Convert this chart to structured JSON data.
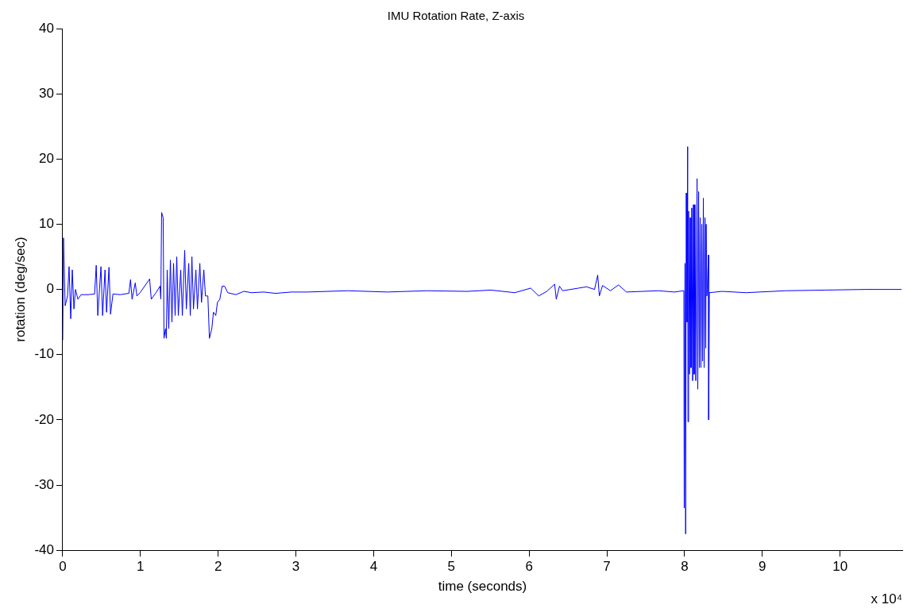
{
  "chart_data": {
    "type": "line",
    "title": "IMU Rotation Rate, Z-axis",
    "xlabel": "time (seconds)",
    "ylabel": "rotation (deg/sec)",
    "annotations": [
      "x 10⁴"
    ],
    "xlim": [
      0,
      10.8
    ],
    "ylim": [
      -40,
      40
    ],
    "xticks": [
      0,
      1,
      2,
      3,
      4,
      5,
      6,
      7,
      8,
      9,
      10
    ],
    "yticks": [
      -40,
      -30,
      -20,
      -10,
      0,
      10,
      20,
      30,
      40
    ],
    "grid": false,
    "legend": false,
    "marker": "none",
    "line_style": "solid",
    "series": [
      {
        "color": "#0000ff",
        "x": [
          0,
          0.01,
          0.031,
          0.062,
          0.082,
          0.103,
          0.123,
          0.144,
          0.164,
          0.195,
          0.236,
          0.328,
          0.41,
          0.431,
          0.451,
          0.492,
          0.513,
          0.544,
          0.564,
          0.595,
          0.615,
          0.646,
          0.739,
          0.851,
          0.872,
          0.892,
          0.933,
          0.954,
          0.995,
          1.118,
          1.139,
          1.2,
          1.251,
          1.262,
          1.272,
          1.292,
          1.303,
          1.323,
          1.333,
          1.344,
          1.364,
          1.385,
          1.405,
          1.426,
          1.446,
          1.467,
          1.487,
          1.518,
          1.539,
          1.569,
          1.59,
          1.621,
          1.641,
          1.662,
          1.682,
          1.713,
          1.733,
          1.764,
          1.785,
          1.815,
          1.836,
          1.867,
          1.887,
          1.918,
          1.939,
          1.969,
          1.99,
          2.021,
          2.051,
          2.082,
          2.123,
          2.226,
          2.328,
          2.431,
          2.585,
          2.739,
          2.944,
          3.149,
          3.662,
          4.174,
          4.687,
          5.2,
          5.508,
          5.815,
          6.021,
          6.123,
          6.226,
          6.328,
          6.349,
          6.39,
          6.431,
          6.636,
          6.739,
          6.841,
          6.882,
          6.903,
          6.944,
          7.046,
          7.149,
          7.251,
          7.456,
          7.662,
          7.867,
          7.99,
          7.995,
          8.005,
          8.013,
          8.021,
          8.031,
          8.039,
          8.043,
          8.051,
          8.062,
          8.072,
          8.082,
          8.092,
          8.103,
          8.113,
          8.123,
          8.133,
          8.144,
          8.16,
          8.169,
          8.18,
          8.19,
          8.2,
          8.21,
          8.221,
          8.231,
          8.241,
          8.251,
          8.262,
          8.272,
          8.277,
          8.287,
          8.307,
          8.31,
          8.318,
          8.482,
          8.79,
          9.303,
          9.815,
          10.328,
          10.79
        ],
        "values": [
          -7.8,
          7.9,
          -2.5,
          -1,
          3.5,
          -4.5,
          3,
          -3,
          0,
          -1.5,
          -0.8,
          -0.8,
          -0.7,
          3.7,
          -4,
          3.5,
          -4,
          3,
          -3.5,
          3.4,
          -3.8,
          -0.7,
          -0.8,
          -0.6,
          1.5,
          -1.5,
          1,
          -1,
          -0.5,
          1.6,
          -1.5,
          -0.5,
          0.5,
          -1.5,
          11.8,
          11,
          -7.5,
          -6,
          -7.5,
          3,
          -6,
          4.5,
          -5,
          4,
          -4,
          5,
          -4,
          3,
          -4,
          6,
          -3,
          4,
          -4,
          5,
          -3,
          3,
          -3,
          4,
          -2,
          3,
          -1,
          -1,
          -7.5,
          -6,
          -3.5,
          -4,
          -2,
          -1.5,
          0.5,
          0.5,
          -0.5,
          -0.8,
          -0.3,
          -0.5,
          -0.4,
          -0.6,
          -0.4,
          -0.4,
          -0.2,
          -0.4,
          -0.2,
          -0.3,
          -0.1,
          -0.5,
          0.2,
          -1,
          -0.3,
          0.8,
          -1.5,
          0.5,
          -0.2,
          0.2,
          0.4,
          0,
          2.2,
          -1,
          0.6,
          -0.2,
          0.7,
          -0.4,
          -0.3,
          -0.2,
          -0.4,
          -0.2,
          -33.5,
          4,
          -37.5,
          14.8,
          -5,
          21.9,
          -20.3,
          12,
          -13,
          11,
          -12,
          12.5,
          -14,
          13,
          -13,
          13,
          -14,
          17,
          -15.3,
          15,
          -12,
          11,
          -12,
          10,
          -11,
          14,
          -12,
          11,
          -9,
          10,
          -1,
          5.3,
          -20,
          -0.5,
          -0.3,
          -0.5,
          -0.2,
          -0.1,
          0,
          0
        ]
      }
    ]
  }
}
